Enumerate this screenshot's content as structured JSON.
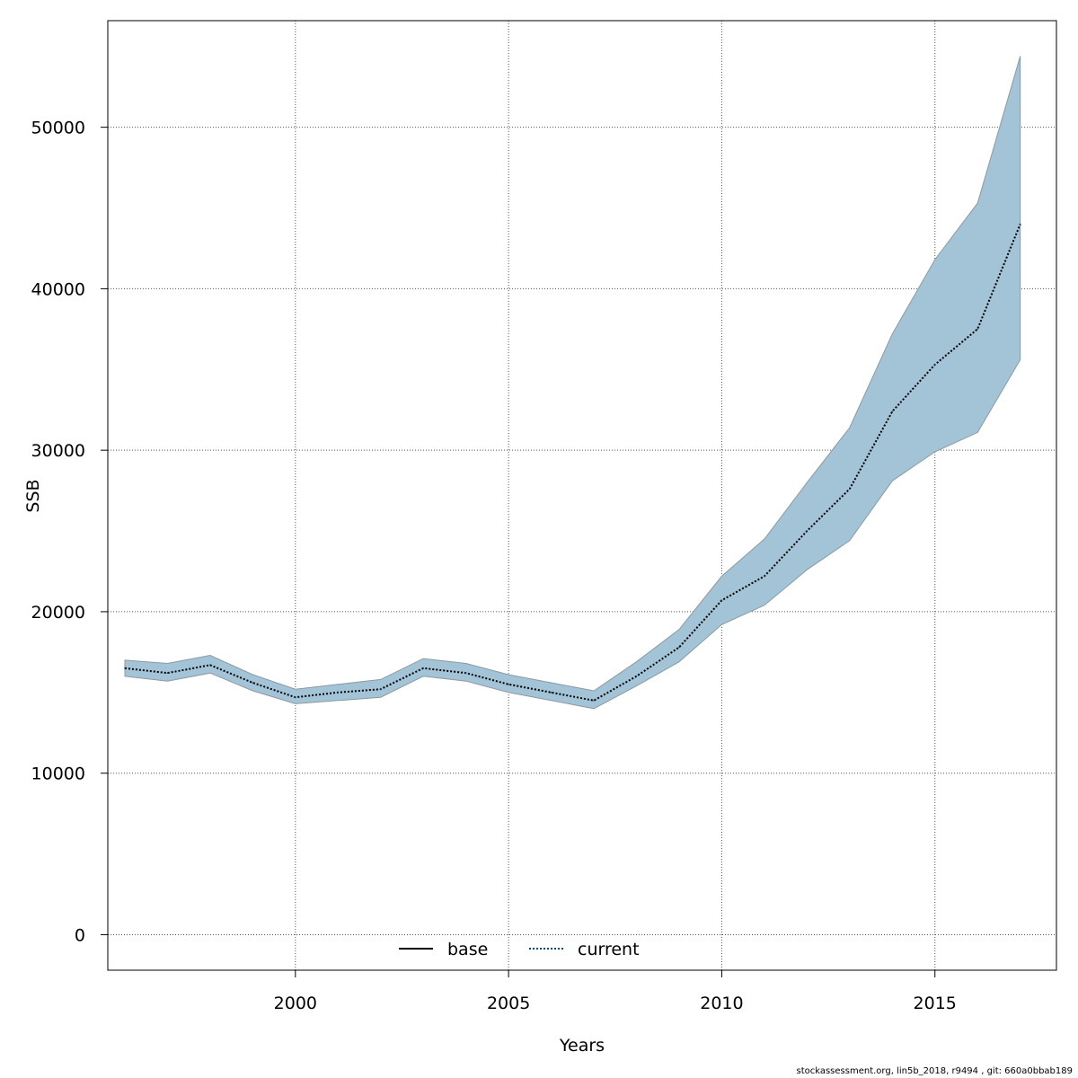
{
  "colors": {
    "band_fill": "#a3c4d6",
    "band_stroke": "#8a9aa4",
    "current_line": "#0a4a7a",
    "base_line": "#000000",
    "grid": "#555555"
  },
  "chart_data": {
    "type": "area",
    "xlabel": "Years",
    "ylabel": "SSB",
    "xlim": [
      1995.6,
      2017.85
    ],
    "ylim": [
      -2200,
      56600
    ],
    "x_ticks": [
      2000,
      2005,
      2010,
      2015
    ],
    "y_ticks": [
      0,
      10000,
      20000,
      30000,
      40000,
      50000
    ],
    "grid": true,
    "legend": {
      "placement": "bottom",
      "entries": [
        {
          "label": "base",
          "style": "solid"
        },
        {
          "label": "current",
          "style": "dotted"
        }
      ]
    },
    "x": [
      1996,
      1997,
      1998,
      1999,
      2000,
      2001,
      2002,
      2003,
      2004,
      2005,
      2006,
      2007,
      2008,
      2009,
      2010,
      2011,
      2012,
      2013,
      2014,
      2015,
      2016,
      2017
    ],
    "series": [
      {
        "name": "current",
        "values": [
          16500,
          16200,
          16700,
          15600,
          14700,
          15000,
          15200,
          16500,
          16200,
          15500,
          15000,
          14500,
          16000,
          17800,
          20700,
          22200,
          25000,
          27600,
          32400,
          35300,
          37500,
          44000
        ],
        "lower": [
          16000,
          15700,
          16200,
          15100,
          14300,
          14500,
          14700,
          16000,
          15700,
          15000,
          14500,
          14000,
          15400,
          16900,
          19200,
          20400,
          22600,
          24400,
          28100,
          29900,
          31100,
          35600
        ],
        "upper": [
          17000,
          16800,
          17300,
          16100,
          15200,
          15500,
          15800,
          17100,
          16800,
          16100,
          15600,
          15100,
          16900,
          18900,
          22200,
          24500,
          28000,
          31400,
          37200,
          41800,
          45300,
          54400
        ]
      }
    ]
  },
  "footer": "stockassessment.org, lin5b_2018, r9494 , git: 660a0bbab189"
}
